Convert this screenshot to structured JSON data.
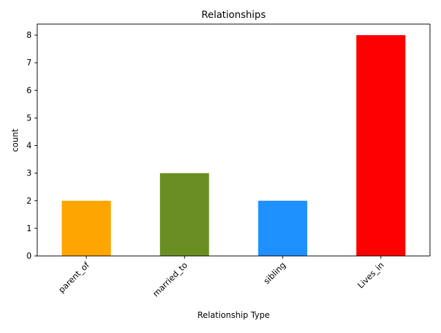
{
  "chart_data": {
    "type": "bar",
    "title": "Relationships",
    "xlabel": "Relationship Type",
    "ylabel": "count",
    "categories": [
      "parent_of",
      "married_to",
      "sibling",
      "Lives_in"
    ],
    "values": [
      2,
      3,
      2,
      8
    ],
    "colors": [
      "#ffa500",
      "#6b8e23",
      "#1e90ff",
      "#ff0000"
    ],
    "ylim": [
      0,
      8.4
    ],
    "yticks": [
      0,
      1,
      2,
      3,
      4,
      5,
      6,
      7,
      8
    ],
    "grid": false,
    "legend": "none"
  }
}
